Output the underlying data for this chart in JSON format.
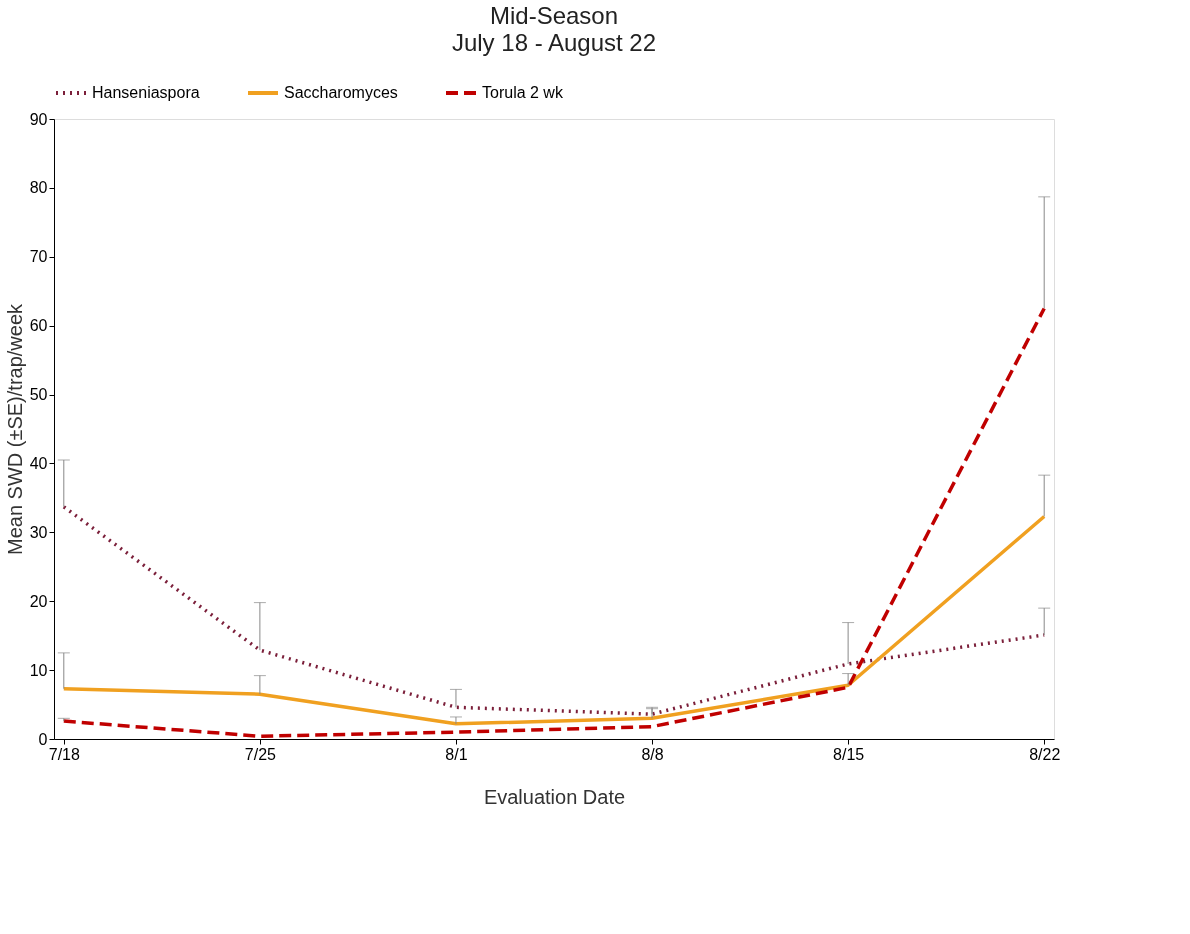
{
  "chart_data": {
    "type": "line",
    "title": "Mid-Season",
    "subtitle": "July 18 - August 22",
    "xlabel": "Evaluation Date",
    "ylabel": "Mean SWD (±SE)/trap/week",
    "categories": [
      "7/18",
      "7/25",
      "8/1",
      "8/8",
      "8/15",
      "8/22"
    ],
    "series": [
      {
        "name": "Hanseniaspora",
        "color": "#7b1f3a",
        "line_style": "dotted",
        "values": [
          33.7,
          12.9,
          4.6,
          3.6,
          10.9,
          15.1
        ],
        "errors": [
          [
            33.7,
            40.5
          ],
          [
            12.9,
            19.8
          ],
          [
            4.6,
            7.2
          ],
          [
            3.6,
            4.6
          ],
          [
            10.9,
            16.9
          ],
          [
            15.1,
            19
          ]
        ]
      },
      {
        "name": "Saccharomyces",
        "color": "#f0a020",
        "line_style": "solid",
        "values": [
          7.3,
          6.5,
          2.2,
          3.0,
          7.8,
          32.3
        ],
        "errors": [
          [
            7.3,
            12.5
          ],
          [
            6.5,
            9.2
          ],
          [
            2.2,
            3.2
          ],
          [
            3.0,
            4.4
          ],
          [
            7.8,
            9.5
          ],
          [
            32.3,
            38.3
          ]
        ]
      },
      {
        "name": "Torula 2 wk",
        "color": "#c00000",
        "line_style": "dashed",
        "values": [
          2.6,
          0.4,
          1.0,
          1.8,
          7.5,
          62.5
        ],
        "errors": [
          [
            2.6,
            3.0
          ],
          null,
          null,
          null,
          null,
          [
            62.5,
            78.7
          ]
        ]
      }
    ],
    "ylim": [
      0,
      90
    ],
    "yticks": [
      0,
      10,
      20,
      30,
      40,
      50,
      60,
      70,
      80,
      90
    ],
    "grid": false,
    "legend": "top",
    "marker": "none"
  }
}
